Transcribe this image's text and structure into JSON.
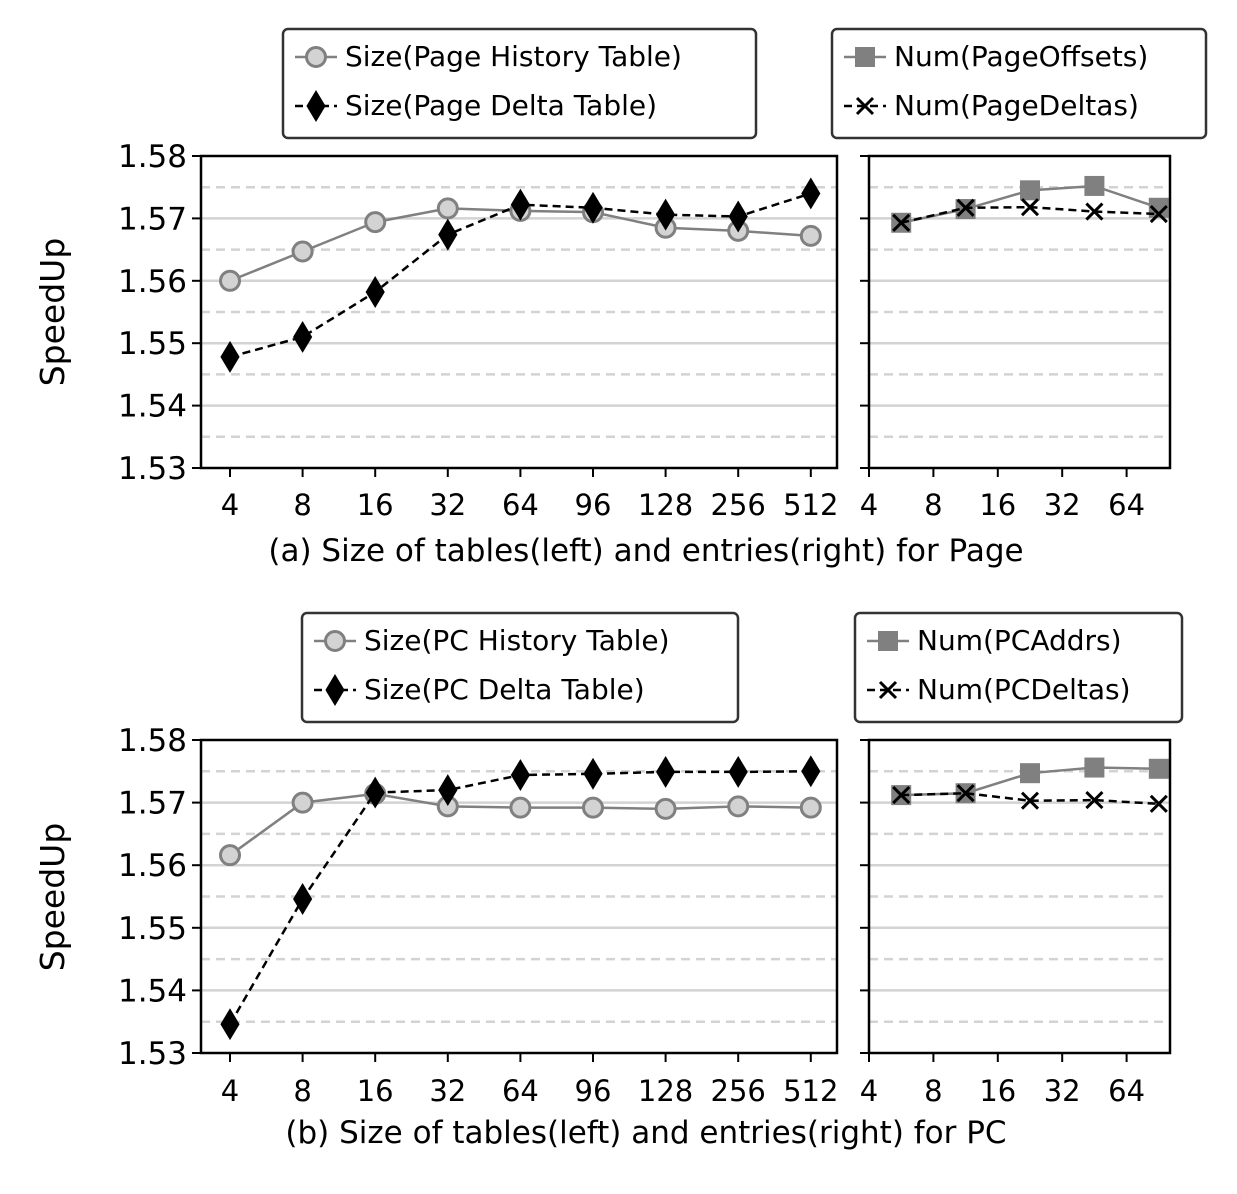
{
  "chart_data": [
    {
      "type": "line",
      "panel": "a-left",
      "caption": "(a) Size of tables(left) and entries(right) for Page",
      "ylabel": "SpeedUp",
      "xlabel": "",
      "categories": [
        "4",
        "8",
        "16",
        "32",
        "64",
        "96",
        "128",
        "256",
        "512"
      ],
      "ylim": [
        1.53,
        1.58
      ],
      "yticks": [
        "1.53",
        "1.54",
        "1.55",
        "1.56",
        "1.57",
        "1.58"
      ],
      "grid": "horizontal: solid at major ticks, dashed at midpoints",
      "legend": "above plot",
      "series": [
        {
          "name": "Size(Page History Table)",
          "color": "#808080",
          "marker": "circle",
          "linestyle": "solid",
          "values": [
            1.56,
            1.5647,
            1.5694,
            1.5716,
            1.5712,
            1.571,
            1.5685,
            1.568,
            1.5672
          ]
        },
        {
          "name": "Size(Page Delta Table)",
          "color": "#000000",
          "marker": "diamond",
          "linestyle": "dashed",
          "values": [
            1.5478,
            1.551,
            1.5582,
            1.5674,
            1.5722,
            1.5717,
            1.5706,
            1.5703,
            1.574
          ]
        }
      ]
    },
    {
      "type": "line",
      "panel": "a-right",
      "categories": [
        "4",
        "8",
        "16",
        "32",
        "64"
      ],
      "x_positions": [
        0.5,
        1.5,
        2.5,
        3.5,
        4.5
      ],
      "ylim": [
        1.53,
        1.58
      ],
      "legend": "above plot",
      "series": [
        {
          "name": "Num(PageOffsets)",
          "color": "#808080",
          "marker": "square",
          "linestyle": "solid",
          "values": [
            1.5693,
            1.5715,
            1.5745,
            1.5752,
            1.5717
          ]
        },
        {
          "name": "Num(PageDeltas)",
          "color": "#000000",
          "marker": "x",
          "linestyle": "dashed",
          "values": [
            1.5693,
            1.5717,
            1.5718,
            1.5711,
            1.5707
          ]
        }
      ]
    },
    {
      "type": "line",
      "panel": "b-left",
      "caption": "(b) Size of tables(left) and entries(right) for PC",
      "ylabel": "SpeedUp",
      "xlabel": "",
      "categories": [
        "4",
        "8",
        "16",
        "32",
        "64",
        "96",
        "128",
        "256",
        "512"
      ],
      "ylim": [
        1.53,
        1.58
      ],
      "yticks": [
        "1.53",
        "1.54",
        "1.55",
        "1.56",
        "1.57",
        "1.58"
      ],
      "grid": "horizontal: solid at major ticks, dashed at midpoints",
      "legend": "above plot",
      "series": [
        {
          "name": "Size(PC History Table)",
          "color": "#808080",
          "marker": "circle",
          "linestyle": "solid",
          "values": [
            1.5616,
            1.57,
            1.5714,
            1.5694,
            1.5692,
            1.5692,
            1.569,
            1.5694,
            1.5692
          ]
        },
        {
          "name": "Size(PC Delta Table)",
          "color": "#000000",
          "marker": "diamond",
          "linestyle": "dashed",
          "values": [
            1.5346,
            1.5546,
            1.5716,
            1.572,
            1.5744,
            1.5746,
            1.5749,
            1.5749,
            1.575
          ]
        }
      ]
    },
    {
      "type": "line",
      "panel": "b-right",
      "categories": [
        "4",
        "8",
        "16",
        "32",
        "64"
      ],
      "x_positions": [
        0.5,
        1.5,
        2.5,
        3.5,
        4.5
      ],
      "ylim": [
        1.53,
        1.58
      ],
      "legend": "above plot",
      "series": [
        {
          "name": "Num(PCAddrs)",
          "color": "#808080",
          "marker": "square",
          "linestyle": "solid",
          "values": [
            1.5712,
            1.5715,
            1.5747,
            1.5756,
            1.5754
          ]
        },
        {
          "name": "Num(PCDeltas)",
          "color": "#000000",
          "marker": "x",
          "linestyle": "dashed",
          "values": [
            1.5712,
            1.5715,
            1.5703,
            1.5704,
            1.5698
          ]
        }
      ]
    }
  ]
}
